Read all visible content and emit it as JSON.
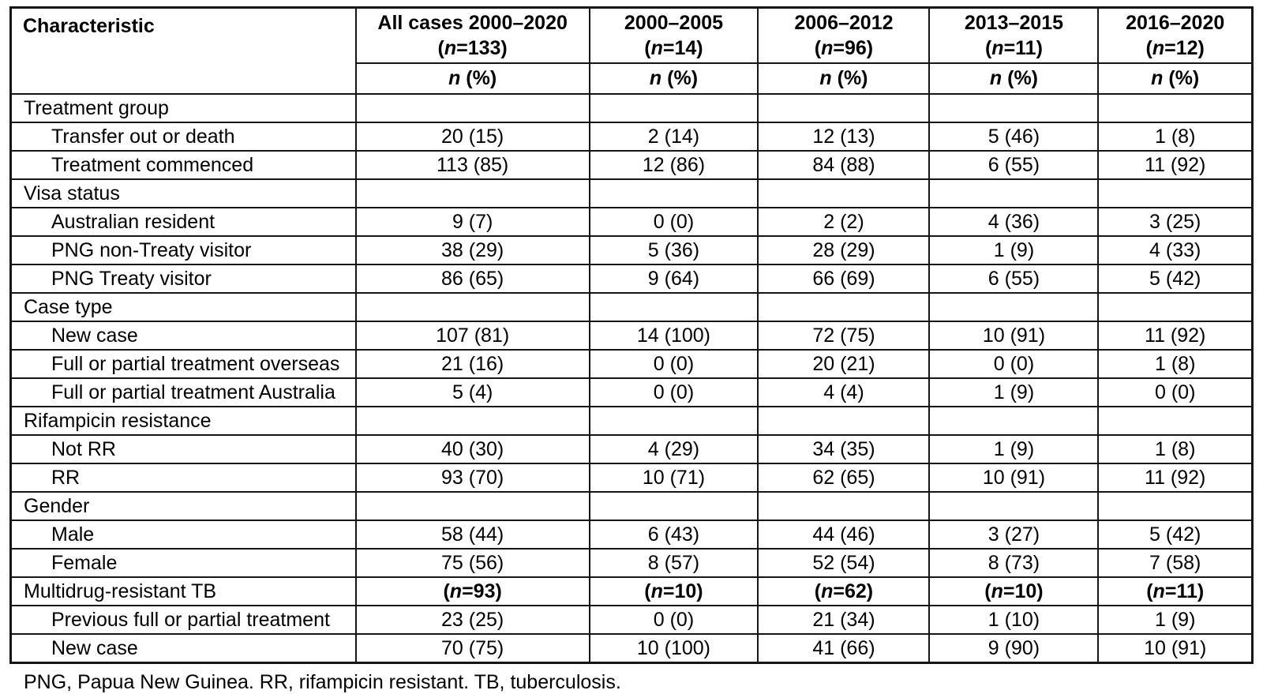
{
  "table": {
    "header": {
      "characteristic": "Characteristic",
      "groups": [
        {
          "title": "All cases 2000–2020",
          "nline": {
            "pre": "(",
            "it": "n",
            "post": "=133)"
          }
        },
        {
          "title": "2000–2005",
          "nline": {
            "pre": "(",
            "it": "n",
            "post": "=14)"
          }
        },
        {
          "title": "2006–2012",
          "nline": {
            "pre": "(",
            "it": "n",
            "post": "=96)"
          }
        },
        {
          "title": "2013–2015",
          "nline": {
            "pre": "(",
            "it": "n",
            "post": "=11)"
          }
        },
        {
          "title": "2016–2020",
          "nline": {
            "pre": "(",
            "it": "n",
            "post": "=12)"
          }
        }
      ],
      "subheader": {
        "pre": "",
        "it": "n",
        "post": " (%)"
      }
    },
    "rows": [
      {
        "type": "section",
        "label": "Treatment group",
        "values": [
          "",
          "",
          "",
          "",
          ""
        ]
      },
      {
        "type": "item",
        "label": "Transfer out or death",
        "values": [
          "20 (15)",
          "2 (14)",
          "12 (13)",
          "5 (46)",
          "1 (8)"
        ]
      },
      {
        "type": "item",
        "label": "Treatment commenced",
        "values": [
          "113 (85)",
          "12 (86)",
          "84 (88)",
          "6 (55)",
          "11 (92)"
        ]
      },
      {
        "type": "section",
        "label": "Visa status",
        "values": [
          "",
          "",
          "",
          "",
          ""
        ]
      },
      {
        "type": "item",
        "label": "Australian resident",
        "values": [
          "9 (7)",
          "0 (0)",
          "2 (2)",
          "4 (36)",
          "3 (25)"
        ]
      },
      {
        "type": "item",
        "label": "PNG non-Treaty visitor",
        "values": [
          "38 (29)",
          "5 (36)",
          "28 (29)",
          "1 (9)",
          "4 (33)"
        ]
      },
      {
        "type": "item",
        "label": "PNG Treaty visitor",
        "values": [
          "86 (65)",
          "9 (64)",
          "66 (69)",
          "6 (55)",
          "5 (42)"
        ]
      },
      {
        "type": "section",
        "label": "Case type",
        "values": [
          "",
          "",
          "",
          "",
          ""
        ]
      },
      {
        "type": "item",
        "label": "New case",
        "values": [
          "107 (81)",
          "14 (100)",
          "72 (75)",
          "10 (91)",
          "11 (92)"
        ]
      },
      {
        "type": "item",
        "label": "Full or partial treatment overseas",
        "values": [
          "21 (16)",
          "0 (0)",
          "20 (21)",
          "0 (0)",
          "1 (8)"
        ]
      },
      {
        "type": "item",
        "label": "Full or partial treatment Australia",
        "values": [
          "5 (4)",
          "0 (0)",
          "4 (4)",
          "1 (9)",
          "0 (0)"
        ]
      },
      {
        "type": "section",
        "label": "Rifampicin resistance",
        "values": [
          "",
          "",
          "",
          "",
          ""
        ]
      },
      {
        "type": "item",
        "label": "Not RR",
        "values": [
          "40 (30)",
          "4 (29)",
          "34 (35)",
          "1 (9)",
          "1 (8)"
        ]
      },
      {
        "type": "item",
        "label": "RR",
        "values": [
          "93 (70)",
          "10 (71)",
          "62 (65)",
          "10 (91)",
          "11 (92)"
        ]
      },
      {
        "type": "section",
        "label": "Gender",
        "values": [
          "",
          "",
          "",
          "",
          ""
        ]
      },
      {
        "type": "item",
        "label": "Male",
        "values": [
          "58 (44)",
          "6 (43)",
          "44 (46)",
          "3 (27)",
          "5 (42)"
        ]
      },
      {
        "type": "item",
        "label": "Female",
        "values": [
          "75 (56)",
          "8 (57)",
          "52 (54)",
          "8 (73)",
          "7 (58)"
        ]
      },
      {
        "type": "section",
        "label": "Multidrug-resistant TB",
        "bold_values": true,
        "values": [
          {
            "pre": "(",
            "it": "n",
            "post": "=93)"
          },
          {
            "pre": "(",
            "it": "n",
            "post": "=10)"
          },
          {
            "pre": "(",
            "it": "n",
            "post": "=62)"
          },
          {
            "pre": "(",
            "it": "n",
            "post": "=10)"
          },
          {
            "pre": "(",
            "it": "n",
            "post": "=11)"
          }
        ]
      },
      {
        "type": "item",
        "label": "Previous full or partial treatment",
        "values": [
          "23 (25)",
          "0 (0)",
          "21 (34)",
          "1 (10)",
          "1 (9)"
        ]
      },
      {
        "type": "item",
        "label": "New case",
        "values": [
          "70 (75)",
          "10 (100)",
          "41 (66)",
          "9 (90)",
          "10 (91)"
        ]
      }
    ],
    "footnote": "PNG, Papua New Guinea. RR, rifampicin resistant. TB, tuberculosis.",
    "colors": {
      "border": "#161616",
      "text": "#000000",
      "background": "#ffffff"
    }
  }
}
